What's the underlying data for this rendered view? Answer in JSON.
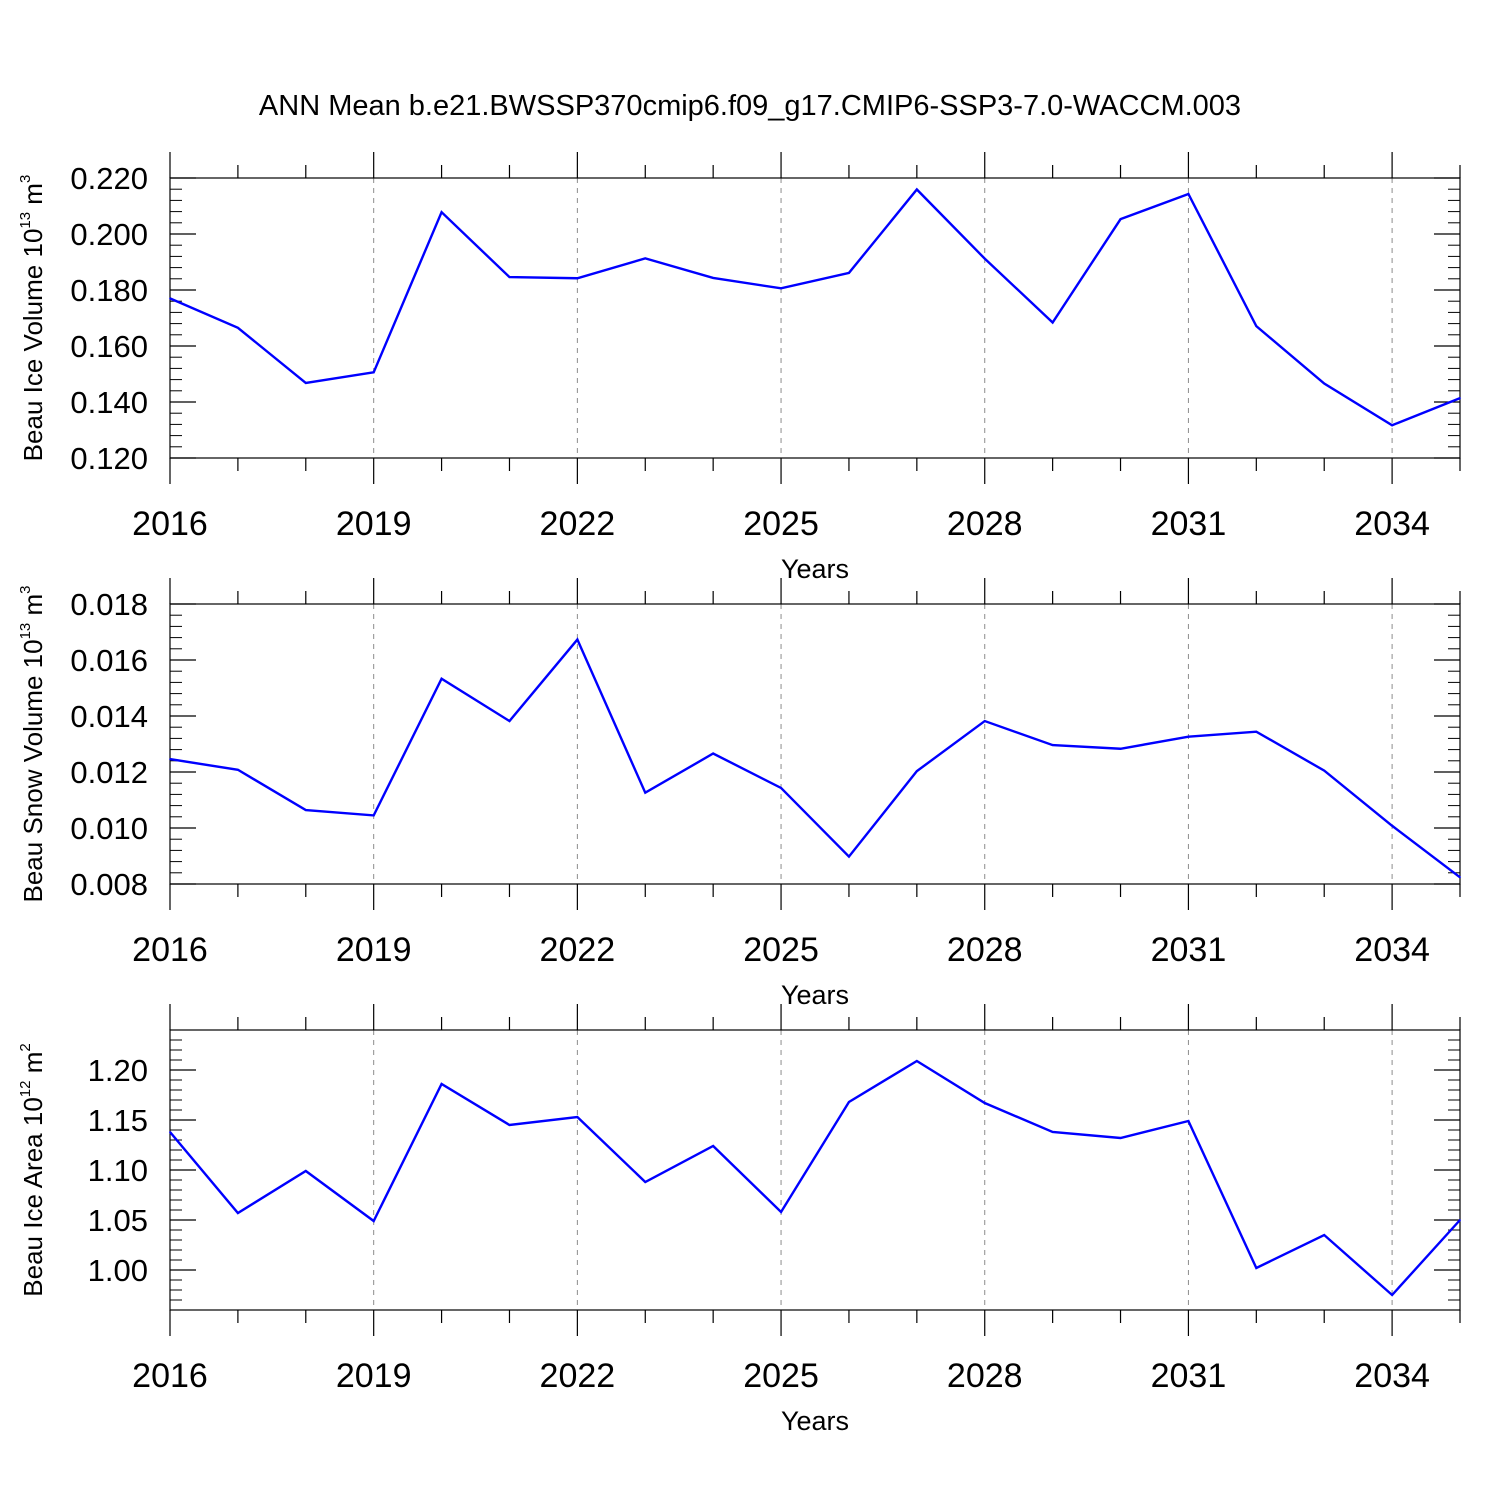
{
  "figure": {
    "title": "ANN Mean b.e21.BWSSP370cmip6.f09_g17.CMIP6-SSP3-7.0-WACCM.003",
    "line_color": "#0000ff",
    "grid_color": "#8c8c8c"
  },
  "chart_data": [
    {
      "type": "line",
      "xlabel": "Years",
      "ylabel": {
        "main": "Beau Ice Volume 10",
        "exp": "13",
        "unit": " m",
        "unit_exp": "3"
      },
      "x": [
        2016,
        2017,
        2018,
        2019,
        2020,
        2021,
        2022,
        2023,
        2024,
        2025,
        2026,
        2027,
        2028,
        2029,
        2030,
        2031,
        2032,
        2033,
        2034,
        2035
      ],
      "xlim": [
        2016,
        2035
      ],
      "xticks": [
        "2016",
        "2019",
        "2022",
        "2025",
        "2028",
        "2031",
        "2034"
      ],
      "ylim": [
        0.12,
        0.22
      ],
      "yticks": [
        "0.120",
        "0.140",
        "0.160",
        "0.180",
        "0.200",
        "0.220"
      ],
      "series": [
        {
          "values": [
            0.177,
            0.1665,
            0.1468,
            0.1506,
            0.2078,
            0.1846,
            0.1842,
            0.1913,
            0.1843,
            0.1806,
            0.1861,
            0.2159,
            0.1912,
            0.1684,
            0.2053,
            0.2143,
            0.1671,
            0.1466,
            0.1317,
            0.1414
          ]
        }
      ]
    },
    {
      "type": "line",
      "xlabel": "Years",
      "ylabel": {
        "main": "Beau Snow Volume 10",
        "exp": "13",
        "unit": " m",
        "unit_exp": "3"
      },
      "x": [
        2016,
        2017,
        2018,
        2019,
        2020,
        2021,
        2022,
        2023,
        2024,
        2025,
        2026,
        2027,
        2028,
        2029,
        2030,
        2031,
        2032,
        2033,
        2034,
        2035
      ],
      "xlim": [
        2016,
        2035
      ],
      "xticks": [
        "2016",
        "2019",
        "2022",
        "2025",
        "2028",
        "2031",
        "2034"
      ],
      "ylim": [
        0.008,
        0.018
      ],
      "yticks": [
        "0.008",
        "0.010",
        "0.012",
        "0.014",
        "0.016",
        "0.018"
      ],
      "series": [
        {
          "values": [
            0.01246,
            0.01208,
            0.01064,
            0.01045,
            0.01533,
            0.01382,
            0.01673,
            0.01126,
            0.01266,
            0.01143,
            0.00898,
            0.01203,
            0.01382,
            0.01296,
            0.01283,
            0.01326,
            0.01344,
            0.01205,
            0.01008,
            0.00824
          ]
        }
      ]
    },
    {
      "type": "line",
      "xlabel": "Years",
      "ylabel": {
        "main": "Beau Ice Area 10",
        "exp": "12",
        "unit": " m",
        "unit_exp": "2"
      },
      "x": [
        2016,
        2017,
        2018,
        2019,
        2020,
        2021,
        2022,
        2023,
        2024,
        2025,
        2026,
        2027,
        2028,
        2029,
        2030,
        2031,
        2032,
        2033,
        2034,
        2035
      ],
      "xlim": [
        2016,
        2035
      ],
      "xticks": [
        "2016",
        "2019",
        "2022",
        "2025",
        "2028",
        "2031",
        "2034"
      ],
      "ylim": [
        0.96,
        1.24
      ],
      "yticks": [
        "1.00",
        "1.05",
        "1.10",
        "1.15",
        "1.20"
      ],
      "series": [
        {
          "values": [
            1.138,
            1.057,
            1.099,
            1.049,
            1.186,
            1.145,
            1.153,
            1.088,
            1.124,
            1.058,
            1.168,
            1.209,
            1.167,
            1.138,
            1.132,
            1.149,
            1.002,
            1.035,
            0.975,
            1.05
          ]
        }
      ]
    }
  ]
}
